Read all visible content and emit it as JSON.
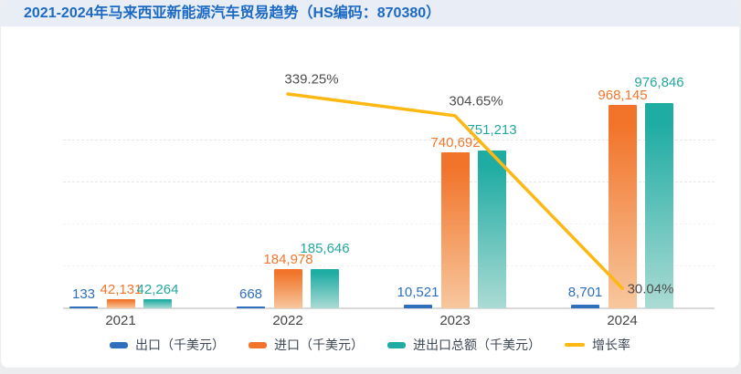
{
  "chart_data": {
    "type": "bar+line",
    "title": "2021-2024年马来西亚新能源汽车贸易趋势（HS编码：870380）",
    "categories": [
      "2021",
      "2022",
      "2023",
      "2024"
    ],
    "series": [
      {
        "key": "export",
        "name": "出口（千美元）",
        "type": "bar",
        "color": "#2F6FBD",
        "values": [
          133,
          668,
          10521,
          8701
        ],
        "labels": [
          "133",
          "668",
          "10,521",
          "8,701"
        ]
      },
      {
        "key": "import",
        "name": "进口（千美元）",
        "type": "bar",
        "color": "#F1742A",
        "color_bottom": "#F8C79E",
        "label_color": "#F0772D",
        "values": [
          42131,
          184978,
          740692,
          968145
        ],
        "labels": [
          "42,131",
          "184,978",
          "740,692",
          "968,145"
        ]
      },
      {
        "key": "total",
        "name": "进出口总额（千美元）",
        "type": "bar",
        "color": "#1FACA3",
        "color_bottom": "#ABDBD4",
        "label_color": "#23A79E",
        "values": [
          42264,
          185646,
          751213,
          976846
        ],
        "labels": [
          "42,264",
          "185,646",
          "751,213",
          "976,846"
        ]
      },
      {
        "key": "growth",
        "name": "增长率",
        "type": "line",
        "color": "#FDB813",
        "label_color": "#4D4D4D",
        "x": [
          "2022",
          "2023",
          "2024"
        ],
        "values": [
          339.25,
          304.65,
          30.04
        ],
        "labels": [
          "339.25%",
          "304.65%",
          "30.04%"
        ]
      }
    ],
    "ylabel": "",
    "xlabel": "",
    "ylim": [
      0,
      1000000
    ],
    "axes_hidden": true,
    "grid": "horizontal-dashed",
    "legend_position": "bottom"
  },
  "colors": {
    "title_text": "#1C6AC4",
    "title_bar_bg": "#E8EDF6",
    "card_bg": "#FFFFFF",
    "page_bg": "#ECEDEF",
    "axis_line": "#DADADA",
    "gridline": "#E7E7E7",
    "tick_text": "#454545"
  }
}
